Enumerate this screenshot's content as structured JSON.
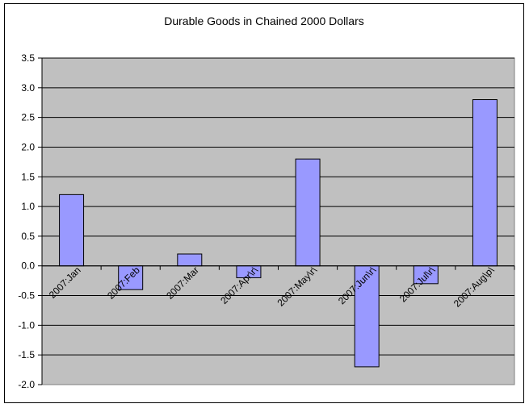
{
  "chart_data": {
    "type": "bar",
    "title": "Durable Goods in Chained 2000 Dollars",
    "xlabel": "",
    "ylabel": "",
    "categories": [
      "2007:Jan",
      "2007:Feb",
      "2007:Mar",
      "2007:Apr\\r\\",
      "2007:May\\r\\",
      "2007:Jun\\r\\",
      "2007:Jul\\r\\",
      "2007:Aug\\p\\"
    ],
    "values": [
      1.2,
      -0.4,
      0.2,
      -0.2,
      1.8,
      -1.7,
      -0.3,
      2.8
    ],
    "ylim": [
      -2.0,
      3.5
    ],
    "yticks": [
      3.5,
      3.0,
      2.5,
      2.0,
      1.5,
      1.0,
      0.5,
      0.0,
      -0.5,
      -1.0,
      -1.5,
      -2.0
    ],
    "ytick_labels": [
      "3.5",
      "3.0",
      "2.5",
      "2.0",
      "1.5",
      "1.0",
      "0.5",
      "0.0",
      "-0.5",
      "-1.0",
      "-1.5",
      "-2.0"
    ],
    "grid": true,
    "legend": "none",
    "colors": {
      "bar_fill": "#9999ff",
      "bar_stroke": "#000000",
      "plot_background": "#c0c0c0",
      "gridline": "#000000"
    }
  }
}
